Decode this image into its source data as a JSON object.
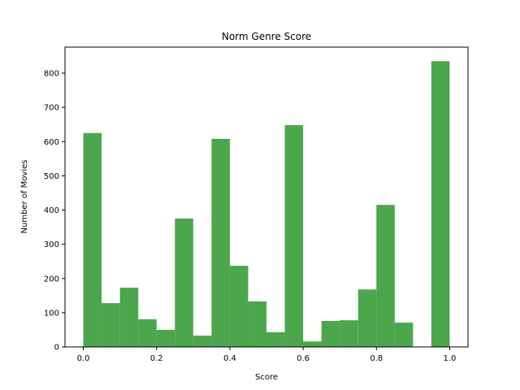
{
  "chart_data": {
    "type": "bar",
    "title": "Norm Genre Score",
    "xlabel": "Score",
    "ylabel": "Number of Movies",
    "bin_width": 0.05,
    "bins": [
      {
        "x0": 0.0,
        "x1": 0.05,
        "count": 625
      },
      {
        "x0": 0.05,
        "x1": 0.1,
        "count": 128
      },
      {
        "x0": 0.1,
        "x1": 0.15,
        "count": 173
      },
      {
        "x0": 0.15,
        "x1": 0.2,
        "count": 81
      },
      {
        "x0": 0.2,
        "x1": 0.25,
        "count": 50
      },
      {
        "x0": 0.25,
        "x1": 0.3,
        "count": 375
      },
      {
        "x0": 0.3,
        "x1": 0.35,
        "count": 33
      },
      {
        "x0": 0.35,
        "x1": 0.4,
        "count": 608
      },
      {
        "x0": 0.4,
        "x1": 0.45,
        "count": 237
      },
      {
        "x0": 0.45,
        "x1": 0.5,
        "count": 133
      },
      {
        "x0": 0.5,
        "x1": 0.55,
        "count": 43
      },
      {
        "x0": 0.55,
        "x1": 0.6,
        "count": 648
      },
      {
        "x0": 0.6,
        "x1": 0.65,
        "count": 16
      },
      {
        "x0": 0.65,
        "x1": 0.7,
        "count": 76
      },
      {
        "x0": 0.7,
        "x1": 0.75,
        "count": 78
      },
      {
        "x0": 0.75,
        "x1": 0.8,
        "count": 168
      },
      {
        "x0": 0.8,
        "x1": 0.85,
        "count": 415
      },
      {
        "x0": 0.85,
        "x1": 0.9,
        "count": 71
      },
      {
        "x0": 0.9,
        "x1": 0.95,
        "count": 0
      },
      {
        "x0": 0.95,
        "x1": 1.0,
        "count": 835
      }
    ],
    "xlim": [
      -0.05,
      1.05
    ],
    "ylim": [
      0,
      876
    ],
    "xticks": [
      "0.0",
      "0.2",
      "0.4",
      "0.6",
      "0.8",
      "1.0"
    ],
    "yticks": [
      "0",
      "100",
      "200",
      "300",
      "400",
      "500",
      "600",
      "700",
      "800"
    ],
    "bar_color": "#4ca64c",
    "grid": false,
    "legend": false
  }
}
